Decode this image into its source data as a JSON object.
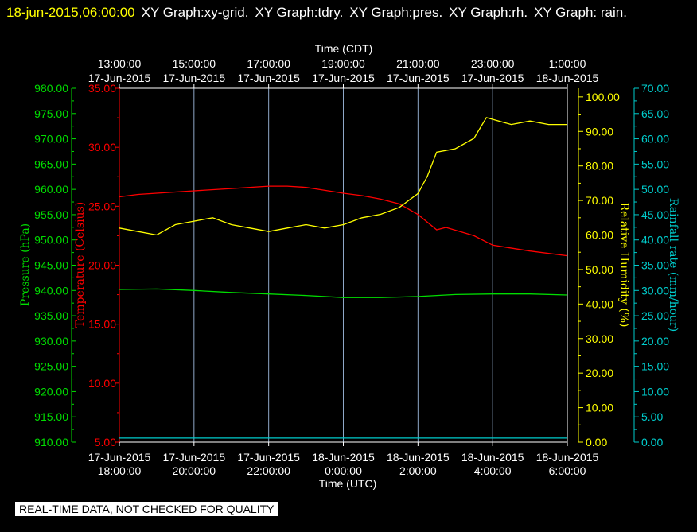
{
  "header": {
    "timestamp": "18-jun-2015,06:00:00",
    "graphs": [
      "XY Graph:xy-grid.",
      "XY Graph:tdry.",
      "XY Graph:pres.",
      "XY Graph:rh.",
      "XY Graph: rain."
    ]
  },
  "footer_banner": "REAL-TIME DATA, NOT CHECKED FOR QUALITY",
  "colors": {
    "background": "#000000",
    "frame": "#ffffff",
    "grid": "#8fa8c8",
    "pressure": "#00dd00",
    "temperature": "#ff0000",
    "humidity": "#ffff00",
    "rain": "#00cccc",
    "timestamp": "#ffff00"
  },
  "chart_data": {
    "type": "line",
    "grid": "vertical",
    "top_axis": {
      "label": "Time (CDT)",
      "ticks": [
        {
          "time": "13:00:00",
          "date": "17-Jun-2015"
        },
        {
          "time": "15:00:00",
          "date": "17-Jun-2015"
        },
        {
          "time": "17:00:00",
          "date": "17-Jun-2015"
        },
        {
          "time": "19:00:00",
          "date": "17-Jun-2015"
        },
        {
          "time": "21:00:00",
          "date": "17-Jun-2015"
        },
        {
          "time": "23:00:00",
          "date": "17-Jun-2015"
        },
        {
          "time": "1:00:00",
          "date": "18-Jun-2015"
        }
      ]
    },
    "bottom_axis": {
      "label": "Time (UTC)",
      "range": [
        "2015-06-17T18:00:00Z",
        "2015-06-18T06:00:00Z"
      ],
      "ticks": [
        {
          "date": "17-Jun-2015",
          "time": "18:00:00",
          "utc": "2015-06-17T18:00:00Z"
        },
        {
          "date": "17-Jun-2015",
          "time": "20:00:00",
          "utc": "2015-06-17T20:00:00Z"
        },
        {
          "date": "17-Jun-2015",
          "time": "22:00:00",
          "utc": "2015-06-17T22:00:00Z"
        },
        {
          "date": "18-Jun-2015",
          "time": "0:00:00",
          "utc": "2015-06-18T00:00:00Z"
        },
        {
          "date": "18-Jun-2015",
          "time": "2:00:00",
          "utc": "2015-06-18T02:00:00Z"
        },
        {
          "date": "18-Jun-2015",
          "time": "4:00:00",
          "utc": "2015-06-18T04:00:00Z"
        },
        {
          "date": "18-Jun-2015",
          "time": "6:00:00",
          "utc": "2015-06-18T06:00:00Z"
        }
      ]
    },
    "y_axes": {
      "pressure": {
        "label": "Pressure (hPa)",
        "range": [
          910,
          980
        ],
        "ticks": [
          "910.00",
          "915.00",
          "920.00",
          "925.00",
          "930.00",
          "935.00",
          "940.00",
          "945.00",
          "950.00",
          "955.00",
          "960.00",
          "965.00",
          "970.00",
          "975.00",
          "980.00"
        ]
      },
      "temperature": {
        "label": "Temperature (Celsius)",
        "range": [
          5,
          35
        ],
        "ticks": [
          "5.00",
          "10.00",
          "15.00",
          "20.00",
          "25.00",
          "30.00",
          "35.00"
        ]
      },
      "humidity": {
        "label": "Relative Humidity (%)",
        "range": [
          0,
          102.5
        ],
        "ticks": [
          "0.00",
          "10.00",
          "20.00",
          "30.00",
          "40.00",
          "50.00",
          "60.00",
          "70.00",
          "80.00",
          "90.00",
          "100.00"
        ]
      },
      "rain": {
        "label": "Rainfall rate (mm/hour)",
        "range": [
          0,
          70
        ],
        "ticks": [
          "0.00",
          "5.00",
          "10.00",
          "15.00",
          "20.00",
          "25.00",
          "30.00",
          "35.00",
          "40.00",
          "45.00",
          "50.00",
          "55.00",
          "60.00",
          "65.00",
          "70.00"
        ]
      }
    },
    "series": [
      {
        "key": "temperature",
        "axis": "temperature",
        "x": [
          "2015-06-17T18:00:00Z",
          "2015-06-17T18:30:00Z",
          "2015-06-17T19:00:00Z",
          "2015-06-17T20:00:00Z",
          "2015-06-17T21:00:00Z",
          "2015-06-17T22:00:00Z",
          "2015-06-17T22:30:00Z",
          "2015-06-17T23:00:00Z",
          "2015-06-18T00:00:00Z",
          "2015-06-18T00:30:00Z",
          "2015-06-18T01:00:00Z",
          "2015-06-18T01:30:00Z",
          "2015-06-18T02:00:00Z",
          "2015-06-18T02:30:00Z",
          "2015-06-18T02:45:00Z",
          "2015-06-18T03:30:00Z",
          "2015-06-18T04:00:00Z",
          "2015-06-18T05:00:00Z",
          "2015-06-18T06:00:00Z"
        ],
        "y": [
          25.8,
          26.0,
          26.1,
          26.3,
          26.5,
          26.7,
          26.7,
          26.6,
          26.1,
          25.9,
          25.6,
          25.2,
          24.3,
          23.0,
          23.2,
          22.5,
          21.7,
          21.2,
          20.8
        ]
      },
      {
        "key": "pressure",
        "axis": "pressure",
        "x": [
          "2015-06-17T18:00:00Z",
          "2015-06-17T19:00:00Z",
          "2015-06-17T20:00:00Z",
          "2015-06-17T21:00:00Z",
          "2015-06-17T22:00:00Z",
          "2015-06-17T23:00:00Z",
          "2015-06-18T00:00:00Z",
          "2015-06-18T01:00:00Z",
          "2015-06-18T02:00:00Z",
          "2015-06-18T03:00:00Z",
          "2015-06-18T04:00:00Z",
          "2015-06-18T05:00:00Z",
          "2015-06-18T06:00:00Z"
        ],
        "y": [
          940.2,
          940.3,
          940.0,
          939.6,
          939.3,
          939.0,
          938.6,
          938.6,
          938.8,
          939.2,
          939.3,
          939.3,
          939.1
        ]
      },
      {
        "key": "humidity",
        "axis": "humidity",
        "x": [
          "2015-06-17T18:00:00Z",
          "2015-06-17T18:30:00Z",
          "2015-06-17T19:00:00Z",
          "2015-06-17T19:30:00Z",
          "2015-06-17T20:00:00Z",
          "2015-06-17T20:30:00Z",
          "2015-06-17T21:00:00Z",
          "2015-06-17T21:30:00Z",
          "2015-06-17T22:00:00Z",
          "2015-06-17T22:30:00Z",
          "2015-06-17T23:00:00Z",
          "2015-06-17T23:30:00Z",
          "2015-06-18T00:00:00Z",
          "2015-06-18T00:30:00Z",
          "2015-06-18T01:00:00Z",
          "2015-06-18T01:30:00Z",
          "2015-06-18T02:00:00Z",
          "2015-06-18T02:15:00Z",
          "2015-06-18T02:30:00Z",
          "2015-06-18T03:00:00Z",
          "2015-06-18T03:30:00Z",
          "2015-06-18T03:50:00Z",
          "2015-06-18T04:30:00Z",
          "2015-06-18T05:00:00Z",
          "2015-06-18T05:30:00Z",
          "2015-06-18T06:00:00Z"
        ],
        "y": [
          62,
          61,
          60,
          63,
          64,
          65,
          63,
          62,
          61,
          62,
          63,
          62,
          63,
          65,
          66,
          68,
          72,
          77,
          84,
          85,
          88,
          94,
          92,
          93,
          92,
          92
        ]
      },
      {
        "key": "rain",
        "axis": "rain",
        "x": [
          "2015-06-17T18:00:00Z",
          "2015-06-18T06:00:00Z"
        ],
        "y": [
          0.8,
          0.8
        ]
      }
    ]
  }
}
